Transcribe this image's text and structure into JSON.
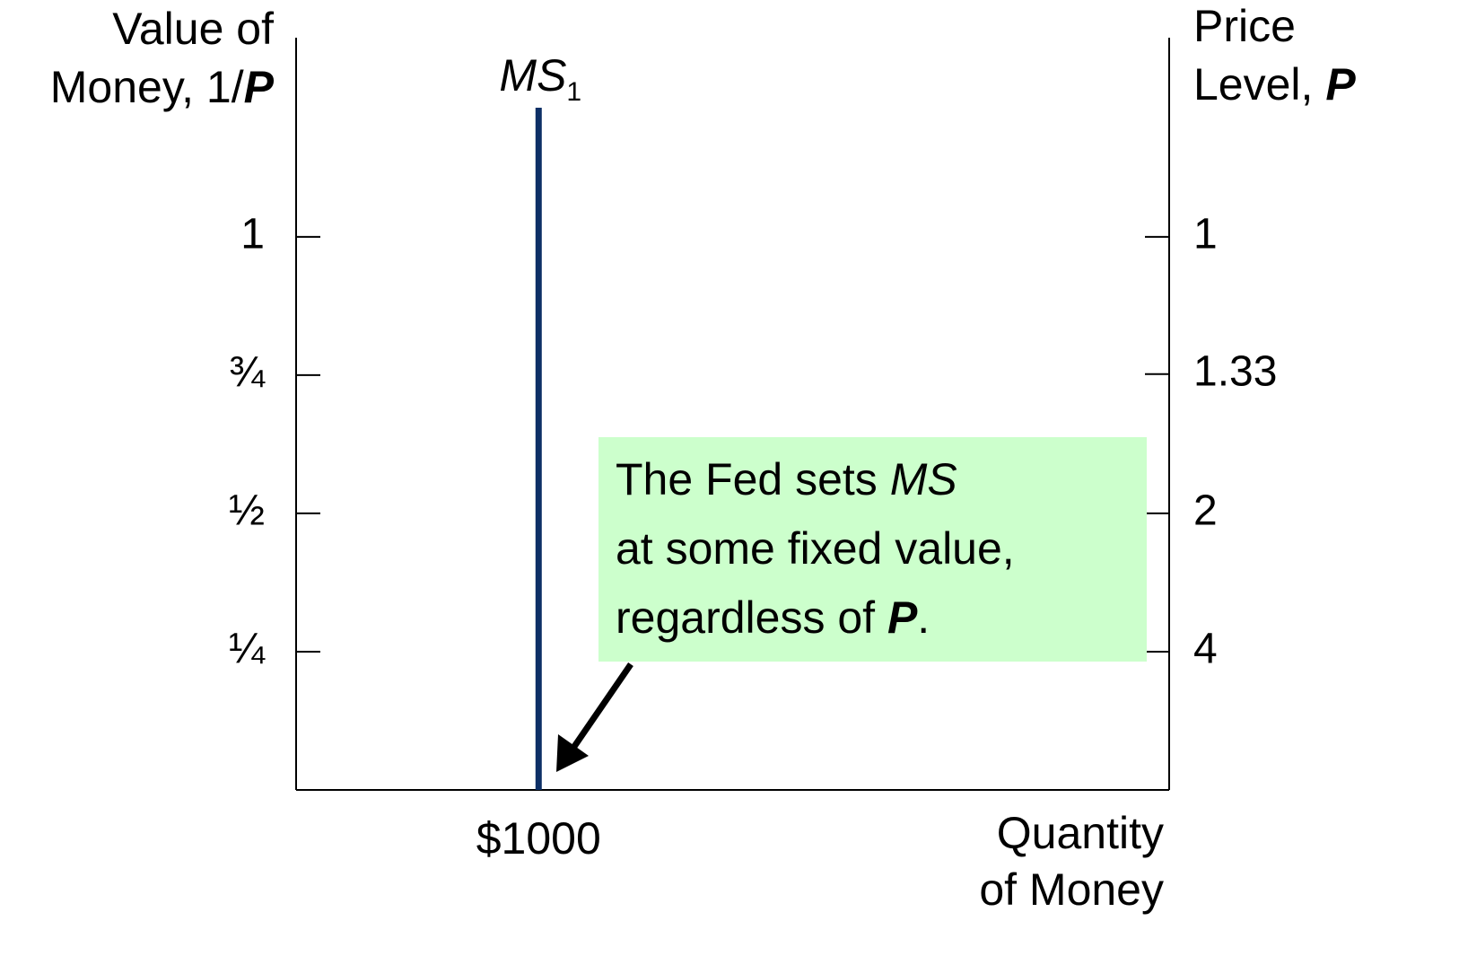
{
  "chart_data": {
    "type": "vertical-line",
    "ylabel": [
      [
        "Value of"
      ],
      [
        "Money, 1/",
        {
          "text": "P",
          "style": "bold-italic"
        }
      ]
    ],
    "y2label": [
      [
        "Price"
      ],
      [
        "Level, ",
        {
          "text": "P",
          "style": "bold-italic"
        }
      ]
    ],
    "xlabel": [
      [
        "Quantity"
      ],
      [
        "of Money"
      ]
    ],
    "xlim": [
      0,
      3600
    ],
    "ylim": [
      0,
      1.36
    ],
    "yticks": [
      {
        "value": 1,
        "label": "1"
      },
      {
        "value": 0.75,
        "label": "¾"
      },
      {
        "value": 0.5,
        "label": "½"
      },
      {
        "value": 0.25,
        "label": "¼"
      }
    ],
    "y2scale": "reciprocal",
    "y2ticks": [
      1,
      1.33,
      2,
      4
    ],
    "series": [
      {
        "name": "MS",
        "subscript": "1",
        "color": "#0d2f66",
        "x": 1000,
        "x_label": "$1000"
      }
    ],
    "annotation": {
      "lines": [
        [
          "The Fed sets ",
          {
            "text": "MS",
            "style": "italic"
          }
        ],
        [
          "at some fixed value,"
        ],
        [
          "regardless of ",
          {
            "text": "P",
            "style": "bold-italic"
          },
          "."
        ]
      ],
      "background": "#ccffcc"
    }
  }
}
